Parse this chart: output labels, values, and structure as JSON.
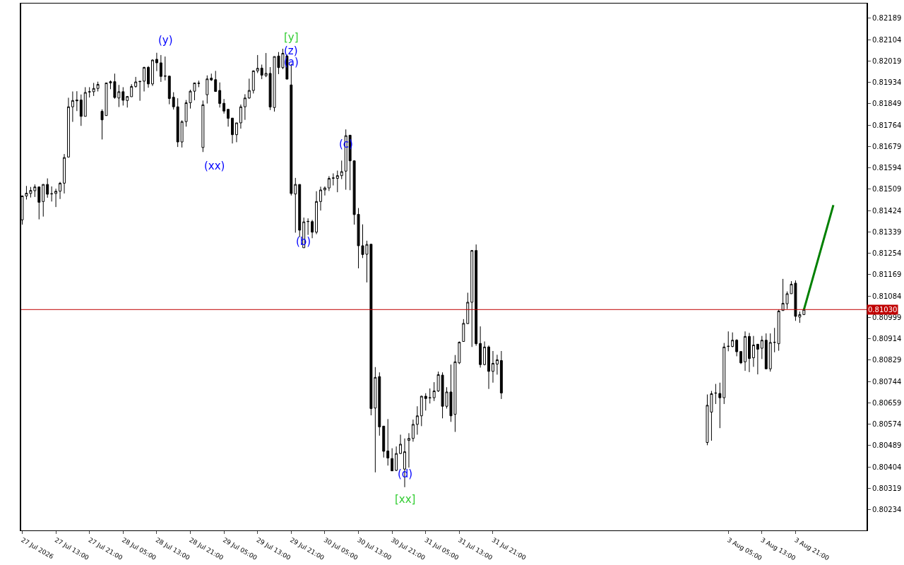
{
  "chart_data": {
    "type": "candlestick",
    "x": [
      "2026-07-27T05:00",
      "2026-07-27T06:00",
      "2026-07-27T07:00",
      "2026-07-27T08:00",
      "2026-07-27T09:00",
      "2026-07-27T10:00",
      "2026-07-27T11:00",
      "2026-07-27T12:00",
      "2026-07-27T13:00",
      "2026-07-27T14:00",
      "2026-07-27T15:00",
      "2026-07-27T16:00",
      "2026-07-27T17:00",
      "2026-07-27T18:00",
      "2026-07-27T19:00",
      "2026-07-27T20:00",
      "2026-07-27T21:00",
      "2026-07-27T22:00",
      "2026-07-27T23:00",
      "2026-07-28T00:00",
      "2026-07-28T01:00",
      "2026-07-28T02:00",
      "2026-07-28T03:00",
      "2026-07-28T04:00",
      "2026-07-28T05:00",
      "2026-07-28T06:00",
      "2026-07-28T07:00",
      "2026-07-28T08:00",
      "2026-07-28T09:00",
      "2026-07-28T10:00",
      "2026-07-28T11:00",
      "2026-07-28T12:00",
      "2026-07-28T13:00",
      "2026-07-28T14:00",
      "2026-07-28T15:00",
      "2026-07-28T16:00",
      "2026-07-28T17:00",
      "2026-07-28T18:00",
      "2026-07-28T19:00",
      "2026-07-28T20:00",
      "2026-07-28T21:00",
      "2026-07-28T22:00",
      "2026-07-28T23:00",
      "2026-07-29T00:00",
      "2026-07-29T01:00",
      "2026-07-29T02:00",
      "2026-07-29T03:00",
      "2026-07-29T04:00",
      "2026-07-29T05:00",
      "2026-07-29T06:00",
      "2026-07-29T07:00",
      "2026-07-29T08:00",
      "2026-07-29T09:00",
      "2026-07-29T10:00",
      "2026-07-29T11:00",
      "2026-07-29T12:00",
      "2026-07-29T13:00",
      "2026-07-29T14:00",
      "2026-07-29T15:00",
      "2026-07-29T16:00",
      "2026-07-29T17:00",
      "2026-07-29T18:00",
      "2026-07-29T19:00",
      "2026-07-29T20:00",
      "2026-07-29T21:00",
      "2026-07-29T22:00",
      "2026-07-29T23:00",
      "2026-07-30T00:00",
      "2026-07-30T01:00",
      "2026-07-30T02:00",
      "2026-07-30T03:00",
      "2026-07-30T04:00",
      "2026-07-30T05:00",
      "2026-07-30T06:00",
      "2026-07-30T07:00",
      "2026-07-30T08:00",
      "2026-07-30T09:00",
      "2026-07-30T10:00",
      "2026-07-30T11:00",
      "2026-07-30T12:00",
      "2026-07-30T13:00",
      "2026-07-30T14:00",
      "2026-07-30T15:00",
      "2026-07-30T16:00",
      "2026-07-30T17:00",
      "2026-07-30T18:00",
      "2026-07-30T19:00",
      "2026-07-30T20:00",
      "2026-07-30T21:00",
      "2026-07-30T22:00",
      "2026-07-30T23:00",
      "2026-07-31T00:00",
      "2026-07-31T01:00",
      "2026-07-31T02:00",
      "2026-07-31T03:00",
      "2026-07-31T04:00",
      "2026-07-31T05:00",
      "2026-07-31T06:00",
      "2026-07-31T07:00",
      "2026-07-31T08:00",
      "2026-07-31T09:00",
      "2026-07-31T10:00",
      "2026-07-31T11:00",
      "2026-07-31T12:00",
      "2026-07-31T13:00",
      "2026-07-31T14:00",
      "2026-07-31T15:00",
      "2026-07-31T16:00",
      "2026-07-31T17:00",
      "2026-07-31T18:00",
      "2026-07-31T19:00",
      "2026-07-31T20:00",
      "2026-07-31T21:00",
      "2026-07-31T22:00",
      "2026-07-31T23:00",
      "2026-08-03T00:00",
      "2026-08-03T01:00",
      "2026-08-03T02:00",
      "2026-08-03T03:00",
      "2026-08-03T04:00",
      "2026-08-03T05:00",
      "2026-08-03T06:00",
      "2026-08-03T07:00",
      "2026-08-03T08:00",
      "2026-08-03T09:00",
      "2026-08-03T10:00",
      "2026-08-03T11:00",
      "2026-08-03T12:00",
      "2026-08-03T13:00",
      "2026-08-03T14:00",
      "2026-08-03T15:00",
      "2026-08-03T16:00",
      "2026-08-03T17:00",
      "2026-08-03T18:00",
      "2026-08-03T19:00",
      "2026-08-03T20:00",
      "2026-08-03T21:00",
      "2026-08-03T22:00",
      "2026-08-03T23:00"
    ],
    "ohlc": [
      [
        0.81387,
        0.81484,
        0.81368,
        0.81482
      ],
      [
        0.81482,
        0.81522,
        0.81468,
        0.81493
      ],
      [
        0.81492,
        0.81518,
        0.81476,
        0.81504
      ],
      [
        0.81503,
        0.81528,
        0.81478,
        0.81518
      ],
      [
        0.81518,
        0.8152,
        0.81389,
        0.81457
      ],
      [
        0.8146,
        0.81529,
        0.814,
        0.81528
      ],
      [
        0.81528,
        0.81552,
        0.81475,
        0.81489
      ],
      [
        0.8149,
        0.8152,
        0.8146,
        0.81491
      ],
      [
        0.81492,
        0.81511,
        0.81438,
        0.81501
      ],
      [
        0.81501,
        0.81538,
        0.8147,
        0.81533
      ],
      [
        0.81533,
        0.81649,
        0.81492,
        0.81635
      ],
      [
        0.81637,
        0.81873,
        0.81635,
        0.81837
      ],
      [
        0.81837,
        0.81898,
        0.81777,
        0.81862
      ],
      [
        0.81864,
        0.81899,
        0.8182,
        0.81861
      ],
      [
        0.81864,
        0.81886,
        0.81761,
        0.81799
      ],
      [
        0.81799,
        0.81915,
        0.81799,
        0.81894
      ],
      [
        0.81896,
        0.81915,
        0.81874,
        0.81897
      ],
      [
        0.81897,
        0.81932,
        0.8188,
        0.8191
      ],
      [
        0.8191,
        0.81937,
        0.81898,
        0.81926
      ],
      [
        0.81819,
        0.81827,
        0.81707,
        0.81785
      ],
      [
        0.81802,
        0.81933,
        0.81802,
        0.81932
      ],
      [
        0.81932,
        0.81942,
        0.81907,
        0.81937
      ],
      [
        0.81937,
        0.81969,
        0.81869,
        0.81874
      ],
      [
        0.81872,
        0.81924,
        0.81836,
        0.81897
      ],
      [
        0.81897,
        0.81915,
        0.81842,
        0.81863
      ],
      [
        0.81862,
        0.8188,
        0.81834,
        0.81878
      ],
      [
        0.81877,
        0.81927,
        0.81877,
        0.81918
      ],
      [
        0.81918,
        0.81956,
        0.81913,
        0.81936
      ],
      [
        0.81937,
        0.8194,
        0.81861,
        0.81938
      ],
      [
        0.81939,
        0.81996,
        0.81898,
        0.81994
      ],
      [
        0.81994,
        0.81999,
        0.81913,
        0.81928
      ],
      [
        0.81928,
        0.82026,
        0.8192,
        0.82023
      ],
      [
        0.82026,
        0.82052,
        0.81979,
        0.82012
      ],
      [
        0.82012,
        0.82043,
        0.81936,
        0.81958
      ],
      [
        0.8196,
        0.82037,
        0.81942,
        0.81959
      ],
      [
        0.81959,
        0.81961,
        0.81847,
        0.8187
      ],
      [
        0.81875,
        0.81895,
        0.81826,
        0.81837
      ],
      [
        0.81837,
        0.81871,
        0.81677,
        0.81697
      ],
      [
        0.81697,
        0.81783,
        0.81675,
        0.81778
      ],
      [
        0.81778,
        0.81864,
        0.81758,
        0.81853
      ],
      [
        0.81853,
        0.81905,
        0.8183,
        0.81899
      ],
      [
        0.81899,
        0.81933,
        0.81863,
        0.81932
      ],
      [
        0.8193,
        0.81941,
        0.81915,
        0.81931
      ],
      [
        0.81675,
        0.81862,
        0.81657,
        0.81845
      ],
      [
        0.81885,
        0.81962,
        0.8185,
        0.81948
      ],
      [
        0.81951,
        0.81969,
        0.8194,
        0.81944
      ],
      [
        0.81945,
        0.8198,
        0.81898,
        0.81898
      ],
      [
        0.81902,
        0.81934,
        0.81834,
        0.8185
      ],
      [
        0.81851,
        0.81868,
        0.8181,
        0.8182
      ],
      [
        0.81827,
        0.81827,
        0.81758,
        0.81791
      ],
      [
        0.81792,
        0.81792,
        0.81691,
        0.81726
      ],
      [
        0.81726,
        0.81773,
        0.81696,
        0.81773
      ],
      [
        0.81773,
        0.81846,
        0.8175,
        0.81837
      ],
      [
        0.81837,
        0.81887,
        0.81785,
        0.81872
      ],
      [
        0.81872,
        0.81949,
        0.81869,
        0.81902
      ],
      [
        0.81902,
        0.81982,
        0.8189,
        0.8198
      ],
      [
        0.8198,
        0.82043,
        0.81971,
        0.8199
      ],
      [
        0.81991,
        0.82005,
        0.81947,
        0.81963
      ],
      [
        0.81961,
        0.82051,
        0.81955,
        0.8197
      ],
      [
        0.8197,
        0.81995,
        0.81824,
        0.81836
      ],
      [
        0.81834,
        0.82037,
        0.81818,
        0.82037
      ],
      [
        0.82039,
        0.82055,
        0.81967,
        0.81993
      ],
      [
        0.81993,
        0.82068,
        0.81987,
        0.8205
      ],
      [
        0.82039,
        0.82045,
        0.81947,
        0.81947
      ],
      [
        0.81924,
        0.82008,
        0.81484,
        0.81492
      ],
      [
        0.8149,
        0.81554,
        0.81336,
        0.81528
      ],
      [
        0.81528,
        0.81528,
        0.81318,
        0.81346
      ],
      [
        0.81276,
        0.81396,
        0.81276,
        0.81379
      ],
      [
        0.8138,
        0.81393,
        0.81327,
        0.81381
      ],
      [
        0.8138,
        0.81387,
        0.81314,
        0.81338
      ],
      [
        0.81338,
        0.81501,
        0.8133,
        0.8146
      ],
      [
        0.8146,
        0.81519,
        0.81424,
        0.81506
      ],
      [
        0.81506,
        0.8152,
        0.81484,
        0.81514
      ],
      [
        0.81514,
        0.81561,
        0.81502,
        0.81552
      ],
      [
        0.81554,
        0.81572,
        0.81524,
        0.81553
      ],
      [
        0.81552,
        0.81583,
        0.81497,
        0.81563
      ],
      [
        0.81563,
        0.81623,
        0.81549,
        0.81579
      ],
      [
        0.81581,
        0.81747,
        0.81507,
        0.81722
      ],
      [
        0.81724,
        0.81724,
        0.81505,
        0.81622
      ],
      [
        0.81622,
        0.81624,
        0.81368,
        0.81408
      ],
      [
        0.81409,
        0.81434,
        0.81194,
        0.81284
      ],
      [
        0.81284,
        0.81369,
        0.81235,
        0.81249
      ],
      [
        0.8125,
        0.81304,
        0.81138,
        0.81289
      ],
      [
        0.8129,
        0.8129,
        0.80609,
        0.80636
      ],
      [
        0.80638,
        0.80801,
        0.80382,
        0.8076
      ],
      [
        0.80763,
        0.8078,
        0.80528,
        0.80563
      ],
      [
        0.80566,
        0.80566,
        0.80441,
        0.80466
      ],
      [
        0.80467,
        0.80594,
        0.80409,
        0.80439
      ],
      [
        0.80437,
        0.80478,
        0.80388,
        0.80388
      ],
      [
        0.8039,
        0.80485,
        0.80387,
        0.80457
      ],
      [
        0.80457,
        0.80532,
        0.80455,
        0.80494
      ],
      [
        0.80395,
        0.80517,
        0.80323,
        0.80464
      ],
      [
        0.80509,
        0.80538,
        0.80401,
        0.80517
      ],
      [
        0.80517,
        0.80592,
        0.80504,
        0.80573
      ],
      [
        0.80573,
        0.80645,
        0.80532,
        0.80607
      ],
      [
        0.80607,
        0.80687,
        0.80566,
        0.80685
      ],
      [
        0.80685,
        0.80697,
        0.80628,
        0.80676
      ],
      [
        0.80678,
        0.80716,
        0.80656,
        0.80679
      ],
      [
        0.80679,
        0.80741,
        0.80666,
        0.80706
      ],
      [
        0.80706,
        0.80783,
        0.80702,
        0.80771
      ],
      [
        0.80769,
        0.8078,
        0.80597,
        0.80645
      ],
      [
        0.80645,
        0.80721,
        0.80636,
        0.80702
      ],
      [
        0.80702,
        0.80811,
        0.80583,
        0.80607
      ],
      [
        0.80613,
        0.80849,
        0.80543,
        0.80822
      ],
      [
        0.80818,
        0.80903,
        0.80813,
        0.809
      ],
      [
        0.80903,
        0.80992,
        0.80903,
        0.80975
      ],
      [
        0.80974,
        0.81097,
        0.80973,
        0.81059
      ],
      [
        0.81059,
        0.81267,
        0.80881,
        0.81265
      ],
      [
        0.81265,
        0.81289,
        0.80886,
        0.80894
      ],
      [
        0.80895,
        0.80963,
        0.80799,
        0.80811
      ],
      [
        0.80811,
        0.80903,
        0.80808,
        0.80881
      ],
      [
        0.80881,
        0.80887,
        0.80714,
        0.80784
      ],
      [
        0.80784,
        0.80865,
        0.80739,
        0.80816
      ],
      [
        0.80813,
        0.8085,
        0.80771,
        0.8083
      ],
      [
        0.80827,
        0.80865,
        0.80674,
        0.80698
      ],
      [
        0.80501,
        0.80692,
        0.8049,
        0.80649
      ],
      [
        0.80622,
        0.80706,
        0.80508,
        0.80695
      ],
      [
        0.80697,
        0.80734,
        0.80654,
        0.80698
      ],
      [
        0.80696,
        0.80739,
        0.80558,
        0.80679
      ],
      [
        0.80679,
        0.80897,
        0.80654,
        0.80881
      ],
      [
        0.80883,
        0.80943,
        0.80864,
        0.80884
      ],
      [
        0.80883,
        0.80939,
        0.8088,
        0.80908
      ],
      [
        0.80908,
        0.80912,
        0.80844,
        0.80862
      ],
      [
        0.80863,
        0.80863,
        0.80813,
        0.80818
      ],
      [
        0.80822,
        0.80943,
        0.80786,
        0.80923
      ],
      [
        0.80923,
        0.80937,
        0.80781,
        0.80835
      ],
      [
        0.80838,
        0.80925,
        0.80802,
        0.80889
      ],
      [
        0.80892,
        0.80892,
        0.80772,
        0.80872
      ],
      [
        0.80876,
        0.80925,
        0.80833,
        0.80908
      ],
      [
        0.80908,
        0.80935,
        0.80794,
        0.80794
      ],
      [
        0.80794,
        0.80935,
        0.80783,
        0.80899
      ],
      [
        0.80899,
        0.80957,
        0.8086,
        0.809
      ],
      [
        0.80894,
        0.8103,
        0.80866,
        0.81024
      ],
      [
        0.81026,
        0.81152,
        0.81026,
        0.81055
      ],
      [
        0.81053,
        0.81102,
        0.81032,
        0.81093
      ],
      [
        0.81093,
        0.81143,
        0.81093,
        0.81131
      ],
      [
        0.81135,
        0.81146,
        0.80985,
        0.81003
      ],
      [
        0.81,
        0.81022,
        0.80977,
        0.8101
      ],
      [
        0.8101,
        0.81035,
        0.81008,
        0.8103
      ]
    ],
    "series": [
      {
        "type": "line",
        "color": "#008000",
        "x": [
          "2026-08-03T23:00",
          "2026-08-04T06:00"
        ],
        "values": [
          0.8103,
          0.81446
        ]
      }
    ],
    "xlim": [
      "2026-07-27T04:45",
      "2026-08-04T13:54"
    ],
    "xticks": [
      {
        "value": "2026-07-27T05:00",
        "label": "27 Jul 2026"
      },
      {
        "value": "2026-07-27T13:00",
        "label": "27 Jul 13:00"
      },
      {
        "value": "2026-07-27T21:00",
        "label": "27 Jul 21:00"
      },
      {
        "value": "2026-07-28T05:00",
        "label": "28 Jul 05:00"
      },
      {
        "value": "2026-07-28T13:00",
        "label": "28 Jul 13:00"
      },
      {
        "value": "2026-07-28T21:00",
        "label": "28 Jul 21:00"
      },
      {
        "value": "2026-07-29T05:00",
        "label": "29 Jul 05:00"
      },
      {
        "value": "2026-07-29T13:00",
        "label": "29 Jul 13:00"
      },
      {
        "value": "2026-07-29T21:00",
        "label": "29 Jul 21:00"
      },
      {
        "value": "2026-07-30T05:00",
        "label": "30 Jul 05:00"
      },
      {
        "value": "2026-07-30T13:00",
        "label": "30 Jul 13:00"
      },
      {
        "value": "2026-07-30T21:00",
        "label": "30 Jul 21:00"
      },
      {
        "value": "2026-07-31T05:00",
        "label": "31 Jul 05:00"
      },
      {
        "value": "2026-07-31T13:00",
        "label": "31 Jul 13:00"
      },
      {
        "value": "2026-07-31T21:00",
        "label": "31 Jul 21:00"
      },
      {
        "value": "2026-08-03T05:00",
        "label": "3 Aug 05:00"
      },
      {
        "value": "2026-08-03T13:00",
        "label": "3 Aug 13:00"
      },
      {
        "value": "2026-08-03T21:00",
        "label": "3 Aug 21:00"
      }
    ],
    "ylim": [
      0.80151,
      0.82248
    ],
    "yticks": [
      0.82189,
      0.82104,
      0.82019,
      0.81934,
      0.81849,
      0.81764,
      0.81679,
      0.81594,
      0.81509,
      0.81424,
      0.81339,
      0.81254,
      0.81169,
      0.81084,
      0.80999,
      0.80914,
      0.80829,
      0.80744,
      0.80659,
      0.80574,
      0.80489,
      0.80404,
      0.80319,
      0.80234
    ],
    "ref_lines": [
      {
        "axis": "y",
        "value": 0.8103,
        "label": "0.81030",
        "color": "#c00000"
      }
    ],
    "annotations": [
      "(y)",
      "[y]",
      "(z)",
      "(a)",
      "(xx)",
      "(b)",
      "(c)",
      "(d)",
      "[xx]"
    ]
  }
}
